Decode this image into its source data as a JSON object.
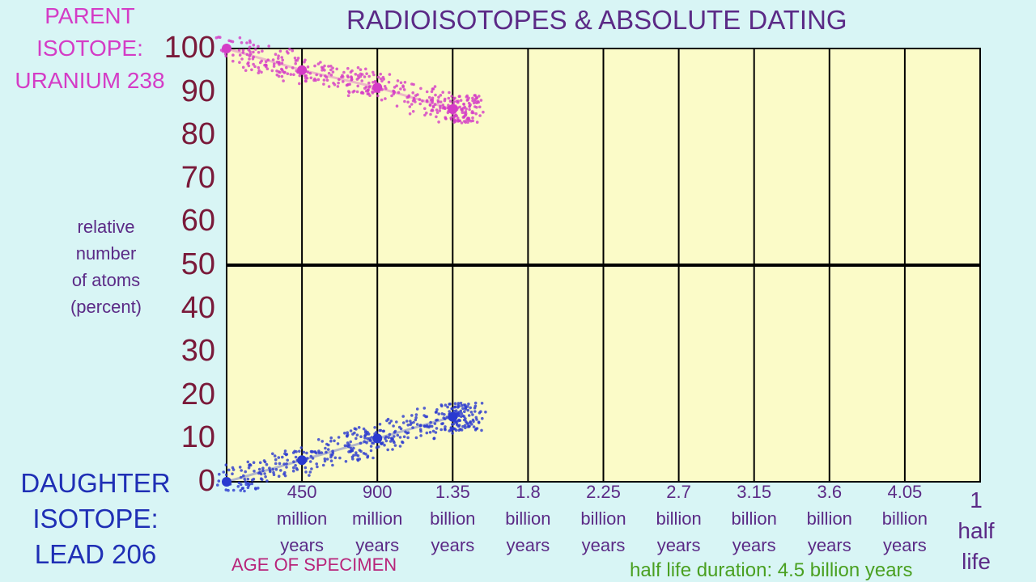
{
  "title": "RADIOISOTOPES & ABSOLUTE DATING",
  "parent_label": [
    "PARENT",
    "ISOTOPE:",
    "URANIUM 238"
  ],
  "daughter_label": [
    "DAUGHTER",
    "ISOTOPE:",
    "LEAD 206"
  ],
  "ylabel": [
    "relative",
    "number",
    "of atoms",
    "(percent)"
  ],
  "xlabel": "AGE OF SPECIMEN",
  "note": "half life duration: 4.5 billion years",
  "half_life_marker": [
    "1",
    "half",
    "life"
  ],
  "colors": {
    "plot_bg": "#fbfbc8",
    "parent": "#d43cc6",
    "daughter": "#2a3ad0",
    "tick": "#7a1a3a",
    "axis_text": "#5b2a86"
  },
  "chart_data": {
    "type": "scatter",
    "ylim": [
      0,
      100
    ],
    "y_ticks": [
      0,
      10,
      20,
      30,
      40,
      50,
      60,
      70,
      80,
      90,
      100
    ],
    "x_ticks": [
      {
        "lines": [
          "450",
          "million",
          "years"
        ]
      },
      {
        "lines": [
          "900",
          "million",
          "years"
        ]
      },
      {
        "lines": [
          "1.35",
          "billion",
          "years"
        ]
      },
      {
        "lines": [
          "1.8",
          "billion",
          "years"
        ]
      },
      {
        "lines": [
          "2.25",
          "billion",
          "years"
        ]
      },
      {
        "lines": [
          "2.7",
          "billion",
          "years"
        ]
      },
      {
        "lines": [
          "3.15",
          "billion",
          "years"
        ]
      },
      {
        "lines": [
          "3.6",
          "billion",
          "years"
        ]
      },
      {
        "lines": [
          "4.05",
          "billion",
          "years"
        ]
      }
    ],
    "series": [
      {
        "name": "PARENT ISOTOPE: URANIUM 238",
        "x_billion_years": [
          0,
          0.45,
          0.9,
          1.35
        ],
        "y": [
          100,
          95,
          91,
          86
        ]
      },
      {
        "name": "DAUGHTER ISOTOPE: LEAD 206",
        "x_billion_years": [
          0,
          0.45,
          0.9,
          1.35
        ],
        "y": [
          0,
          5,
          10,
          15
        ]
      }
    ]
  }
}
